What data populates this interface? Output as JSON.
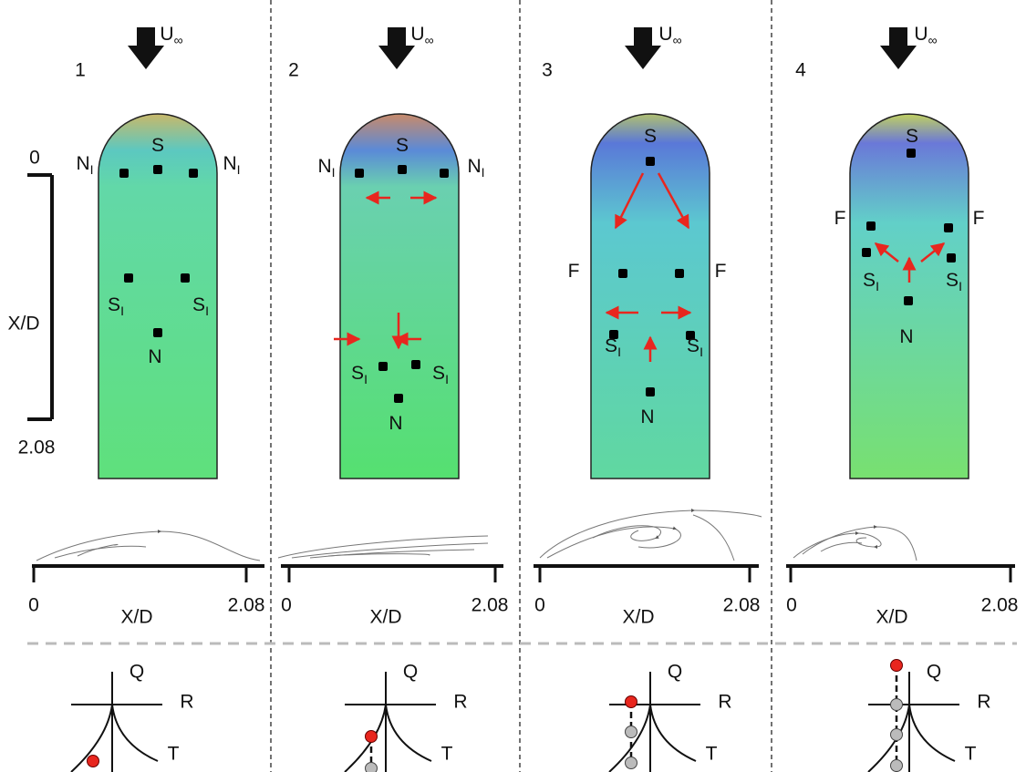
{
  "scale": {
    "start": "0",
    "label": "X/D",
    "end": "2.08"
  },
  "panels": [
    {
      "number": "1",
      "freestream": {
        "main": "U",
        "sub": "∞"
      },
      "points": [
        {
          "main": "S"
        },
        {
          "main": "N",
          "sub": "I"
        },
        {
          "main": "N",
          "sub": "I"
        },
        {
          "main": "S",
          "sub": "I"
        },
        {
          "main": "S",
          "sub": "I"
        },
        {
          "main": "N"
        }
      ],
      "profile": {
        "start": "0",
        "label": "X/D",
        "end": "2.08"
      },
      "invariants": {
        "q": "Q",
        "r": "R",
        "t": "T"
      }
    },
    {
      "number": "2",
      "freestream": {
        "main": "U",
        "sub": "∞"
      },
      "points": [
        {
          "main": "S"
        },
        {
          "main": "N",
          "sub": "I"
        },
        {
          "main": "N",
          "sub": "I"
        },
        {
          "main": "S",
          "sub": "I"
        },
        {
          "main": "S",
          "sub": "I"
        },
        {
          "main": "N"
        }
      ],
      "profile": {
        "start": "0",
        "label": "X/D",
        "end": "2.08"
      },
      "invariants": {
        "q": "Q",
        "r": "R",
        "t": "T"
      }
    },
    {
      "number": "3",
      "freestream": {
        "main": "U",
        "sub": "∞"
      },
      "points": [
        {
          "main": "S"
        },
        {
          "main": "F"
        },
        {
          "main": "F"
        },
        {
          "main": "S",
          "sub": "I"
        },
        {
          "main": "S",
          "sub": "I"
        },
        {
          "main": "N"
        }
      ],
      "profile": {
        "start": "0",
        "label": "X/D",
        "end": "2.08"
      },
      "invariants": {
        "q": "Q",
        "r": "R",
        "t": "T"
      }
    },
    {
      "number": "4",
      "freestream": {
        "main": "U",
        "sub": "∞"
      },
      "points": [
        {
          "main": "S"
        },
        {
          "main": "F"
        },
        {
          "main": "F"
        },
        {
          "main": "S",
          "sub": "I"
        },
        {
          "main": "S",
          "sub": "I"
        },
        {
          "main": "N"
        }
      ],
      "profile": {
        "start": "0",
        "label": "X/D",
        "end": "2.08"
      },
      "invariants": {
        "q": "Q",
        "r": "R",
        "t": "T"
      }
    }
  ]
}
